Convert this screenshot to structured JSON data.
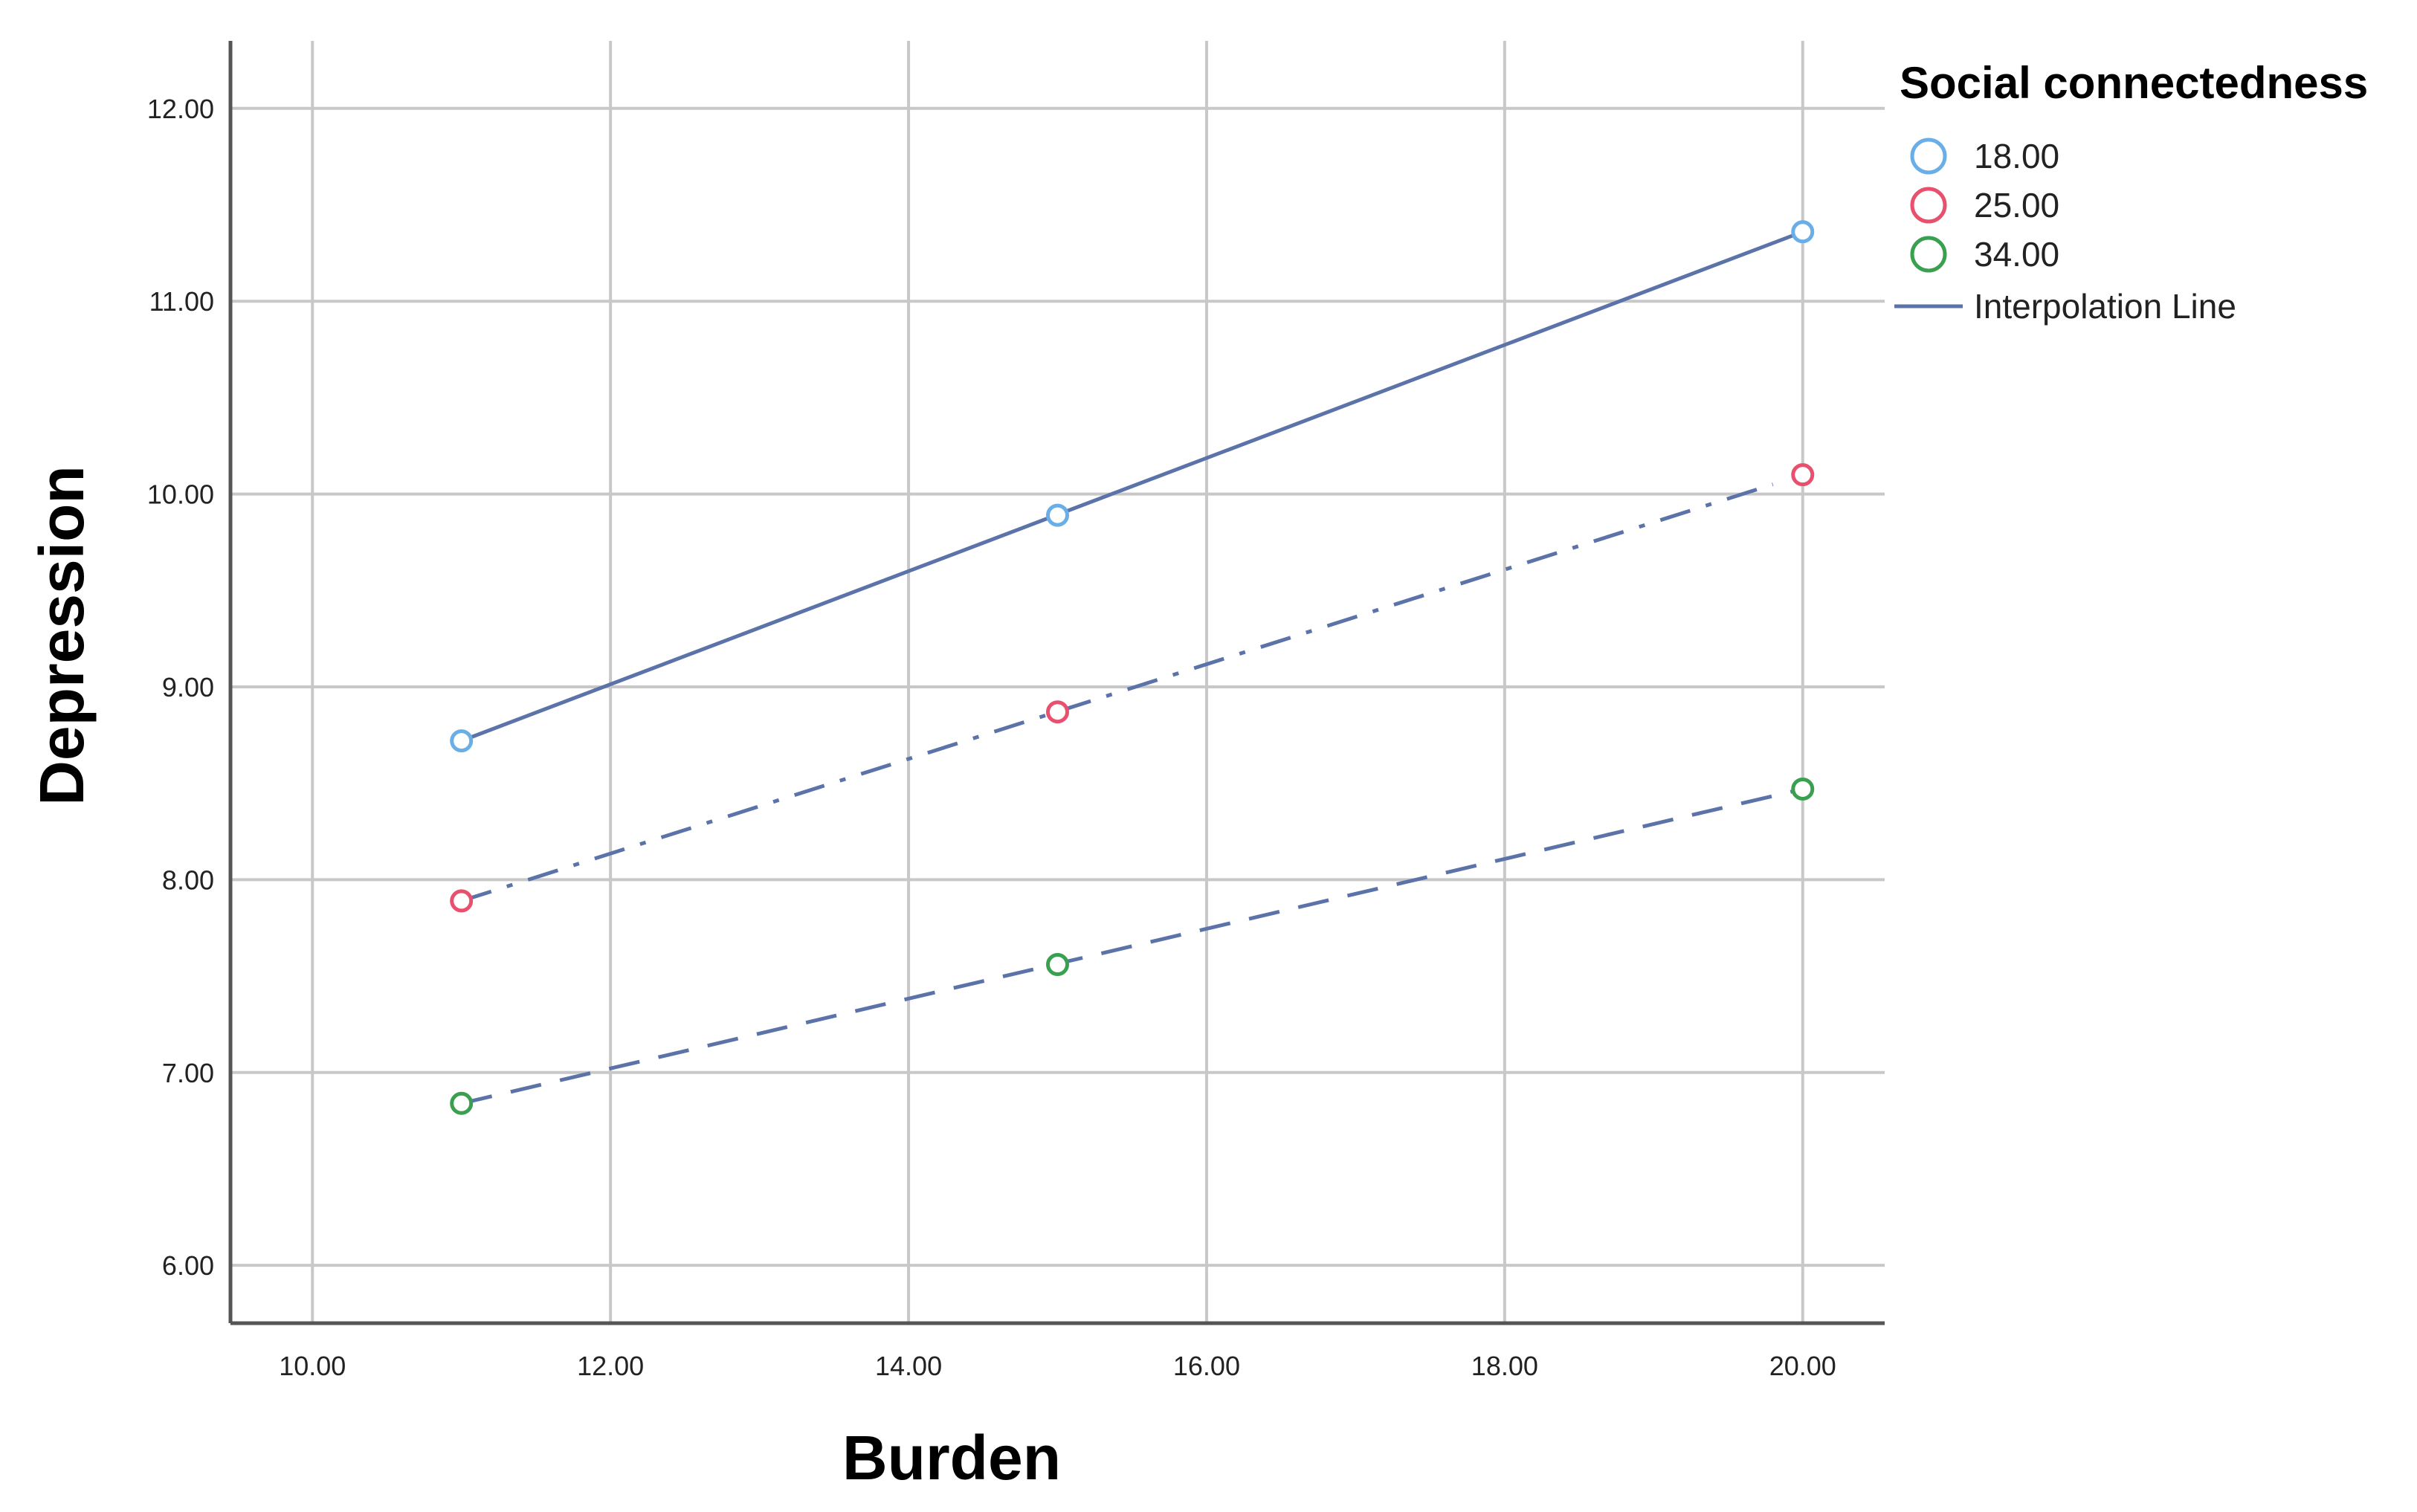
{
  "chart_data": {
    "type": "line",
    "title": "",
    "xlabel": "Burden",
    "ylabel": "Depression",
    "xlim": [
      9.45,
      20.55
    ],
    "ylim": [
      5.7,
      12.35
    ],
    "x_ticks": [
      10,
      12,
      14,
      16,
      18,
      20
    ],
    "x_tick_labels": [
      "10.00",
      "12.00",
      "14.00",
      "16.00",
      "18.00",
      "20.00"
    ],
    "y_ticks": [
      6,
      7,
      8,
      9,
      10,
      11,
      12
    ],
    "y_tick_labels": [
      "6.00",
      "7.00",
      "8.00",
      "9.00",
      "10.00",
      "11.00",
      "12.00"
    ],
    "grid": true,
    "legend": {
      "title": "Social connectedness",
      "position": "top-right",
      "line_label": "Interpolation Line"
    },
    "line_color": "#5b73a8",
    "series": [
      {
        "name": "18.00",
        "marker_color": "#6aaee8",
        "line_style": "solid",
        "x": [
          11,
          15,
          20
        ],
        "y": [
          8.72,
          9.89,
          11.36
        ],
        "line_x": [
          11,
          20
        ],
        "line_y": [
          8.72,
          11.36
        ]
      },
      {
        "name": "25.00",
        "marker_color": "#e8506e",
        "line_style": "dash-dot",
        "x": [
          11,
          15,
          20
        ],
        "y": [
          7.89,
          8.87,
          10.1
        ],
        "line_x": [
          11,
          19.8
        ],
        "line_y": [
          7.89,
          10.05
        ]
      },
      {
        "name": "34.00",
        "marker_color": "#3aa050",
        "line_style": "dashed",
        "x": [
          11,
          15,
          20
        ],
        "y": [
          6.84,
          7.56,
          8.47
        ],
        "line_x": [
          11,
          20
        ],
        "line_y": [
          6.84,
          8.47
        ]
      }
    ]
  }
}
